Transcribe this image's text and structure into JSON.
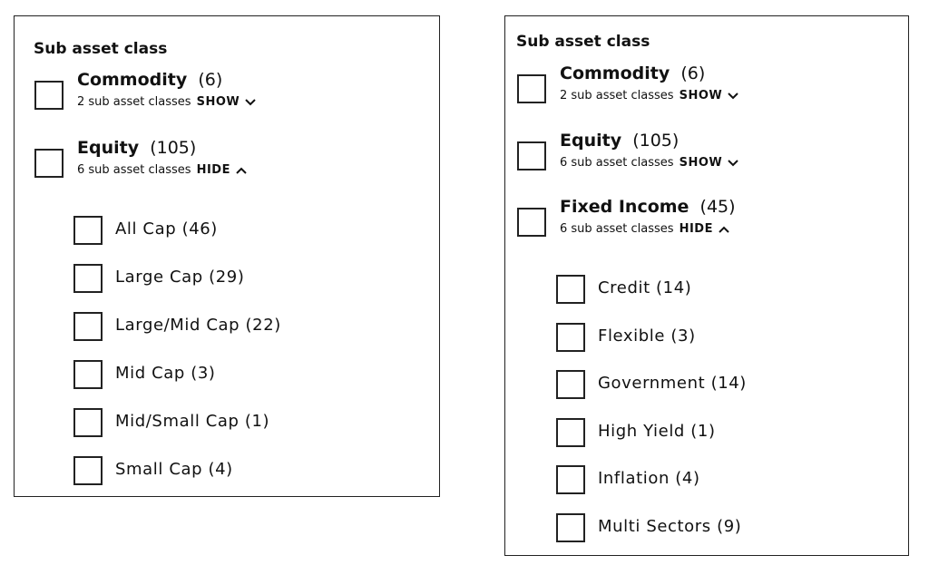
{
  "panels": [
    {
      "title": "Sub asset class",
      "groups": [
        {
          "name": "Commodity",
          "count": "(6)",
          "summary": "2 sub asset classes",
          "toggle": "SHOW"
        },
        {
          "name": "Equity",
          "count": "(105)",
          "summary": "6 sub asset classes",
          "toggle": "HIDE",
          "children": [
            "All Cap (46)",
            "Large Cap (29)",
            "Large/Mid Cap (22)",
            "Mid Cap (3)",
            "Mid/Small Cap (1)",
            "Small Cap (4)"
          ]
        }
      ]
    },
    {
      "title": "Sub asset class",
      "groups": [
        {
          "name": "Commodity",
          "count": "(6)",
          "summary": "2 sub asset classes",
          "toggle": "SHOW"
        },
        {
          "name": "Equity",
          "count": "(105)",
          "summary": "6 sub asset classes",
          "toggle": "SHOW"
        },
        {
          "name": "Fixed Income",
          "count": "(45)",
          "summary": "6 sub asset classes",
          "toggle": "HIDE",
          "children": [
            "Credit (14)",
            "Flexible (3)",
            "Government (14)",
            "High Yield (1)",
            "Inflation (4)",
            "Multi Sectors (9)"
          ]
        }
      ]
    }
  ]
}
